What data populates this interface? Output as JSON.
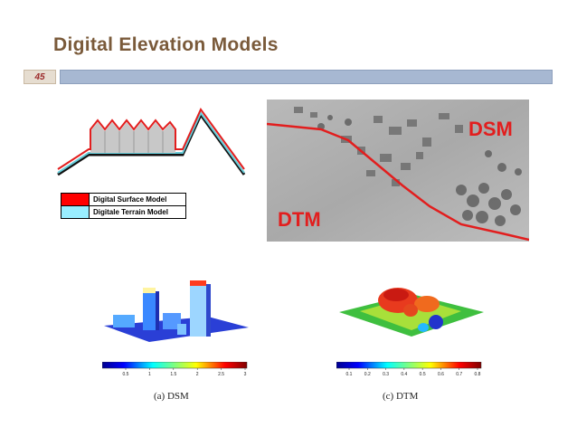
{
  "slide": {
    "title": "Digital Elevation Models",
    "number": "45"
  },
  "legend": {
    "items": [
      {
        "label": "Digital Surface Model",
        "color": "#ff0000"
      },
      {
        "label": "Digitale Terrain Model",
        "color": "#99eeff"
      }
    ]
  },
  "photo": {
    "label_dsm": "DSM",
    "label_dtm": "DTM",
    "line_color": "#e21e1e"
  },
  "figures": {
    "dsm": {
      "caption": "(a) DSM",
      "colorbar_ticks": [
        "0.5",
        "1",
        "1.5",
        "2",
        "2.5",
        "3"
      ]
    },
    "dtm": {
      "caption": "(c) DTM",
      "colorbar_ticks": [
        "0.1",
        "0.2",
        "0.3",
        "0.4",
        "0.5",
        "0.6",
        "0.7",
        "0.8"
      ]
    }
  },
  "colors": {
    "title": "#7a5a3a",
    "header_bar": "#a7b8d2",
    "slide_number": "#9c2b2b"
  }
}
